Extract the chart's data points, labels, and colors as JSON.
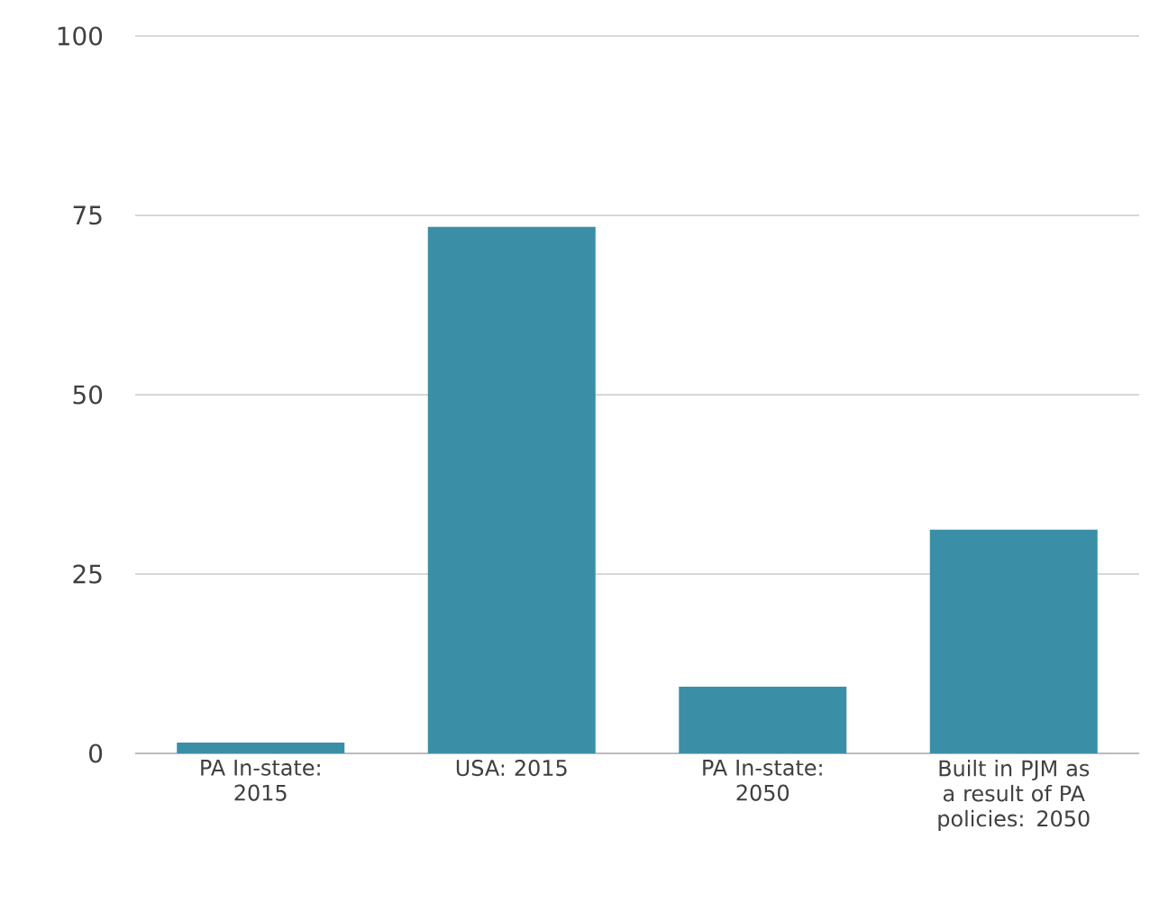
{
  "chart_data": {
    "type": "bar",
    "categories": [
      "PA In-state: 2015",
      "USA: 2015",
      "PA In-state: 2050",
      "Built in PJM as a result of PA policies: 2050"
    ],
    "values": [
      1.5,
      73.4,
      9.3,
      31.2
    ],
    "color": "#3a8fa7",
    "ylim": [
      0,
      100
    ],
    "yticks": [
      0,
      25,
      50,
      75,
      100
    ],
    "grid": "y"
  }
}
